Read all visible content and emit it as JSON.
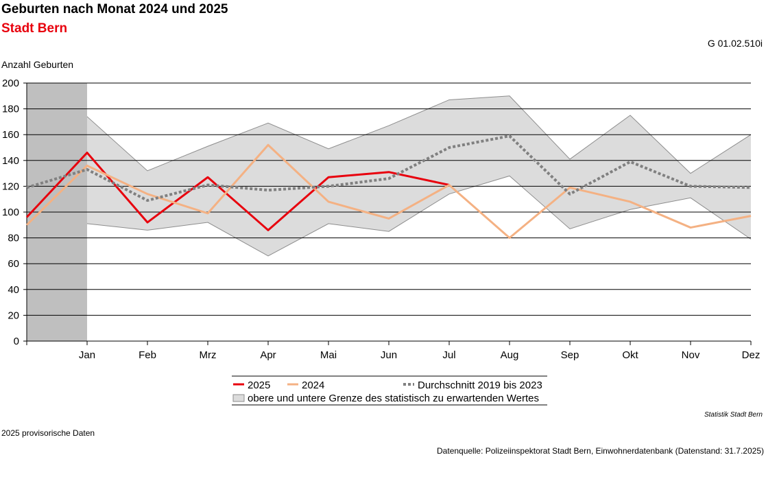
{
  "header": {
    "title": "Geburten nach Monat 2024 und 2025",
    "subtitle": "Stadt Bern",
    "code": "G 01.02.510i"
  },
  "footer": {
    "credit": "Statistik Stadt Bern",
    "footnote": "2025 provisorische Daten",
    "source": "Datenquelle: Polizeiinspektorat Stadt Bern, Einwohnerdatenbank (Datenstand: 31.7.2025)"
  },
  "chart_data": {
    "type": "line",
    "ylabel": "Anzahl Geburten",
    "xlabel": "",
    "ylim": [
      0,
      200
    ],
    "yticks": [
      0,
      20,
      40,
      60,
      80,
      100,
      120,
      140,
      160,
      180,
      200
    ],
    "categories": [
      "Jan",
      "Feb",
      "Mrz",
      "Apr",
      "Mai",
      "Jun",
      "Jul",
      "Aug",
      "Sep",
      "Okt",
      "Nov",
      "Dez"
    ],
    "x_positions": [
      0,
      1,
      2,
      3,
      4,
      5,
      6,
      7,
      8,
      9,
      10,
      11,
      12
    ],
    "grid": true,
    "shaded_period": [
      0,
      1
    ],
    "band": {
      "name": "obere und untere Grenze des statistisch zu erwartenden Wertes",
      "x": [
        0,
        1,
        2,
        3,
        4,
        5,
        6,
        7,
        8,
        9,
        10,
        11,
        12
      ],
      "upper": [
        160,
        174,
        132,
        151,
        169,
        149,
        167,
        187,
        190,
        141,
        175,
        130,
        160
      ],
      "lower": [
        79,
        91,
        86,
        92,
        66,
        91,
        85,
        114,
        128,
        87,
        102,
        111,
        79
      ],
      "color": "#dcdcdc"
    },
    "series": [
      {
        "name": "2025",
        "x": [
          0,
          1,
          2,
          3,
          4,
          5,
          6,
          7
        ],
        "values": [
          96,
          146,
          92,
          127,
          86,
          127,
          131,
          121
        ],
        "color": "#e8000d",
        "style": "solid"
      },
      {
        "name": "2024",
        "x": [
          0,
          1,
          2,
          3,
          4,
          5,
          6,
          7,
          8,
          9,
          10,
          11,
          12
        ],
        "values": [
          90,
          136,
          114,
          99,
          152,
          108,
          95,
          121,
          80,
          119,
          108,
          88,
          97
        ],
        "color": "#f4b183",
        "style": "solid"
      },
      {
        "name": "Durchschnitt 2019 bis 2023",
        "x": [
          0,
          1,
          2,
          3,
          4,
          5,
          6,
          7,
          8,
          9,
          10,
          11,
          12
        ],
        "values": [
          119,
          133,
          109,
          121,
          117,
          120,
          126,
          150,
          159,
          114,
          139,
          120,
          119
        ],
        "color": "#808080",
        "style": "dotted"
      }
    ],
    "legend": {
      "position": "bottom"
    }
  }
}
